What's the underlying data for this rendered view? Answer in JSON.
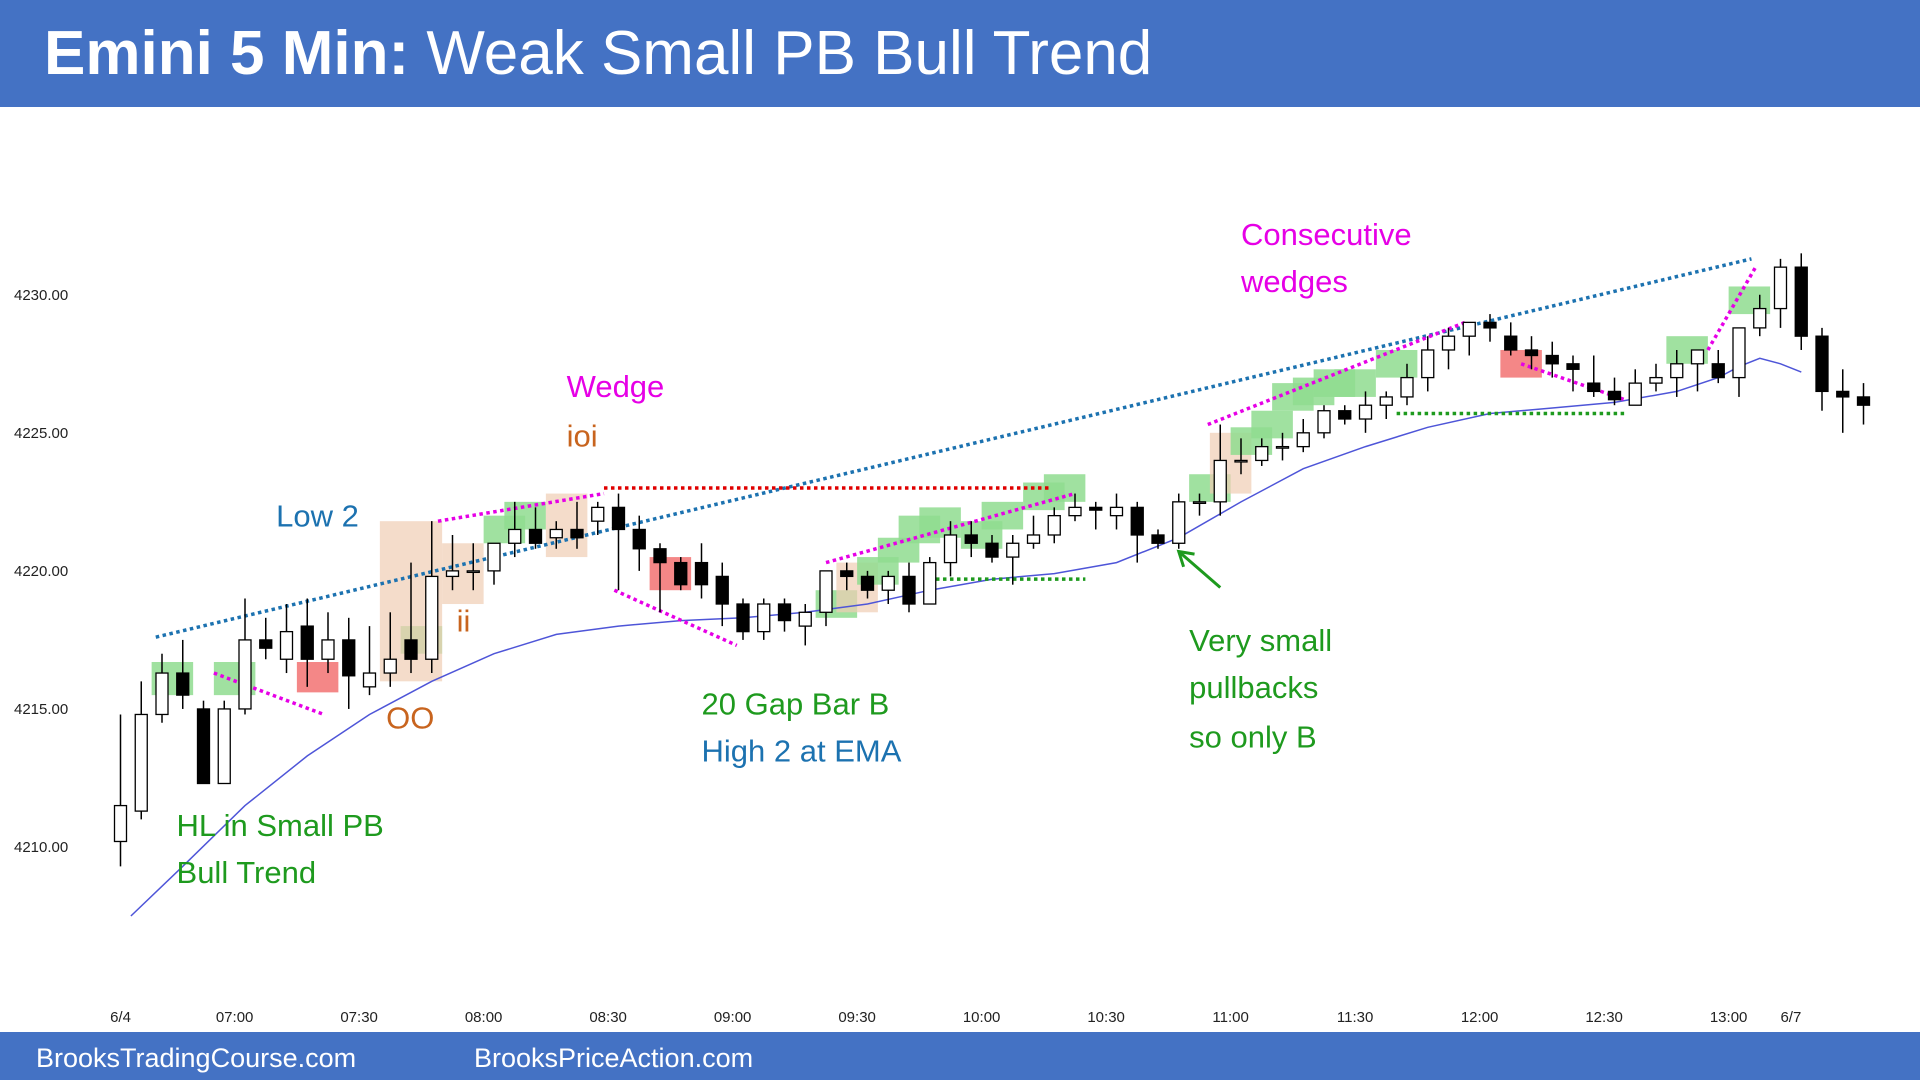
{
  "header": {
    "title_bold": "Emini 5 Min:",
    "title_rest": " Weak Small PB Bull Trend"
  },
  "footer": {
    "left": "BrooksTradingCourse.com",
    "right": "BrooksPriceAction.com"
  },
  "colors": {
    "header_bg": "#4472c4",
    "bull_highlight": "#8fdc8f",
    "bear_highlight": "#f27272",
    "inside_bar_highlight": "#f0cdb4",
    "ema": "#4e55d8",
    "trend_line": "#1c72b0",
    "magenta": "#e600e6",
    "green_text": "#1e9a1e",
    "orange_text": "#c8641e"
  },
  "chart_data": {
    "type": "candlestick",
    "y_ticks": [
      "4210.00",
      "4215.00",
      "4220.00",
      "4225.00",
      "4230.00"
    ],
    "y_tick_values": [
      4210,
      4215,
      4220,
      4225,
      4230
    ],
    "ylim": [
      4203.3,
      4236.8
    ],
    "x_tick_labels": [
      "6/4",
      "07:00",
      "07:30",
      "08:00",
      "08:30",
      "09:00",
      "09:30",
      "10:00",
      "10:30",
      "11:00",
      "11:30",
      "12:00",
      "12:30",
      "13:00",
      "6/7"
    ],
    "x_tick_bars": [
      0,
      5.5,
      11.5,
      17.5,
      23.5,
      29.5,
      35.5,
      41.5,
      47.5,
      53.5,
      59.5,
      65.5,
      71.5,
      77.5,
      80.5
    ],
    "candles": [
      {
        "o": 4210.2,
        "h": 4214.8,
        "l": 4209.3,
        "c": 4211.5
      },
      {
        "o": 4211.3,
        "h": 4216.0,
        "l": 4211.0,
        "c": 4214.8
      },
      {
        "o": 4214.8,
        "h": 4217.0,
        "l": 4214.5,
        "c": 4216.3
      },
      {
        "o": 4216.3,
        "h": 4217.5,
        "l": 4215.0,
        "c": 4215.5
      },
      {
        "o": 4215.0,
        "h": 4215.3,
        "l": 4212.3,
        "c": 4212.3
      },
      {
        "o": 4212.3,
        "h": 4215.3,
        "l": 4212.3,
        "c": 4215.0
      },
      {
        "o": 4215.0,
        "h": 4219.0,
        "l": 4214.8,
        "c": 4217.5
      },
      {
        "o": 4217.5,
        "h": 4218.3,
        "l": 4216.8,
        "c": 4217.2
      },
      {
        "o": 4216.8,
        "h": 4218.8,
        "l": 4216.3,
        "c": 4217.8
      },
      {
        "o": 4218.0,
        "h": 4219.0,
        "l": 4215.8,
        "c": 4216.8
      },
      {
        "o": 4216.8,
        "h": 4218.5,
        "l": 4216.3,
        "c": 4217.5
      },
      {
        "o": 4217.5,
        "h": 4218.3,
        "l": 4215.0,
        "c": 4216.2
      },
      {
        "o": 4215.8,
        "h": 4218.0,
        "l": 4215.5,
        "c": 4216.3
      },
      {
        "o": 4216.3,
        "h": 4218.5,
        "l": 4215.8,
        "c": 4216.8
      },
      {
        "o": 4217.5,
        "h": 4220.3,
        "l": 4216.3,
        "c": 4216.8
      },
      {
        "o": 4216.8,
        "h": 4221.8,
        "l": 4216.3,
        "c": 4219.8
      },
      {
        "o": 4219.8,
        "h": 4221.3,
        "l": 4219.3,
        "c": 4220.0
      },
      {
        "o": 4220.0,
        "h": 4221.0,
        "l": 4219.3,
        "c": 4220.0
      },
      {
        "o": 4220.0,
        "h": 4221.0,
        "l": 4219.5,
        "c": 4221.0
      },
      {
        "o": 4221.0,
        "h": 4222.5,
        "l": 4220.5,
        "c": 4221.5
      },
      {
        "o": 4221.5,
        "h": 4222.3,
        "l": 4220.8,
        "c": 4221.0
      },
      {
        "o": 4221.2,
        "h": 4221.8,
        "l": 4220.8,
        "c": 4221.5
      },
      {
        "o": 4221.5,
        "h": 4222.5,
        "l": 4220.8,
        "c": 4221.2
      },
      {
        "o": 4221.8,
        "h": 4222.5,
        "l": 4221.3,
        "c": 4222.3
      },
      {
        "o": 4222.3,
        "h": 4222.8,
        "l": 4219.3,
        "c": 4221.5
      },
      {
        "o": 4221.5,
        "h": 4222.0,
        "l": 4220.0,
        "c": 4220.8
      },
      {
        "o": 4220.8,
        "h": 4221.0,
        "l": 4218.5,
        "c": 4220.3
      },
      {
        "o": 4220.3,
        "h": 4220.5,
        "l": 4219.3,
        "c": 4219.5
      },
      {
        "o": 4220.3,
        "h": 4221.0,
        "l": 4219.0,
        "c": 4219.5
      },
      {
        "o": 4219.8,
        "h": 4220.3,
        "l": 4218.0,
        "c": 4218.8
      },
      {
        "o": 4218.8,
        "h": 4219.0,
        "l": 4217.5,
        "c": 4217.8
      },
      {
        "o": 4217.8,
        "h": 4219.0,
        "l": 4217.5,
        "c": 4218.8
      },
      {
        "o": 4218.8,
        "h": 4219.0,
        "l": 4217.8,
        "c": 4218.2
      },
      {
        "o": 4218.0,
        "h": 4218.8,
        "l": 4217.3,
        "c": 4218.5
      },
      {
        "o": 4218.5,
        "h": 4220.0,
        "l": 4218.0,
        "c": 4220.0
      },
      {
        "o": 4220.0,
        "h": 4220.3,
        "l": 4219.3,
        "c": 4219.8
      },
      {
        "o": 4219.8,
        "h": 4220.0,
        "l": 4219.0,
        "c": 4219.3
      },
      {
        "o": 4219.3,
        "h": 4220.0,
        "l": 4218.8,
        "c": 4219.8
      },
      {
        "o": 4219.8,
        "h": 4220.3,
        "l": 4218.5,
        "c": 4218.8
      },
      {
        "o": 4218.8,
        "h": 4220.5,
        "l": 4218.8,
        "c": 4220.3
      },
      {
        "o": 4220.3,
        "h": 4221.8,
        "l": 4219.8,
        "c": 4221.3
      },
      {
        "o": 4221.3,
        "h": 4221.8,
        "l": 4220.5,
        "c": 4221.0
      },
      {
        "o": 4221.0,
        "h": 4221.3,
        "l": 4220.3,
        "c": 4220.5
      },
      {
        "o": 4220.5,
        "h": 4221.3,
        "l": 4219.5,
        "c": 4221.0
      },
      {
        "o": 4221.0,
        "h": 4222.0,
        "l": 4220.8,
        "c": 4221.3
      },
      {
        "o": 4221.3,
        "h": 4222.3,
        "l": 4221.0,
        "c": 4222.0
      },
      {
        "o": 4222.0,
        "h": 4222.8,
        "l": 4221.8,
        "c": 4222.3
      },
      {
        "o": 4222.3,
        "h": 4222.5,
        "l": 4221.5,
        "c": 4222.2
      },
      {
        "o": 4222.0,
        "h": 4222.8,
        "l": 4221.5,
        "c": 4222.3
      },
      {
        "o": 4222.3,
        "h": 4222.5,
        "l": 4220.3,
        "c": 4221.3
      },
      {
        "o": 4221.3,
        "h": 4221.5,
        "l": 4220.8,
        "c": 4221.0
      },
      {
        "o": 4221.0,
        "h": 4222.8,
        "l": 4220.8,
        "c": 4222.5
      },
      {
        "o": 4222.5,
        "h": 4222.8,
        "l": 4222.0,
        "c": 4222.5
      },
      {
        "o": 4222.5,
        "h": 4225.3,
        "l": 4222.0,
        "c": 4224.0
      },
      {
        "o": 4224.0,
        "h": 4224.8,
        "l": 4223.5,
        "c": 4224.0
      },
      {
        "o": 4224.0,
        "h": 4224.8,
        "l": 4223.8,
        "c": 4224.5
      },
      {
        "o": 4224.5,
        "h": 4225.0,
        "l": 4224.0,
        "c": 4224.5
      },
      {
        "o": 4224.5,
        "h": 4225.5,
        "l": 4224.3,
        "c": 4225.0
      },
      {
        "o": 4225.0,
        "h": 4226.0,
        "l": 4224.8,
        "c": 4225.8
      },
      {
        "o": 4225.8,
        "h": 4226.0,
        "l": 4225.3,
        "c": 4225.5
      },
      {
        "o": 4225.5,
        "h": 4226.5,
        "l": 4225.0,
        "c": 4226.0
      },
      {
        "o": 4226.0,
        "h": 4226.5,
        "l": 4225.5,
        "c": 4226.3
      },
      {
        "o": 4226.3,
        "h": 4227.5,
        "l": 4226.0,
        "c": 4227.0
      },
      {
        "o": 4227.0,
        "h": 4228.5,
        "l": 4226.5,
        "c": 4228.0
      },
      {
        "o": 4228.0,
        "h": 4228.8,
        "l": 4227.3,
        "c": 4228.5
      },
      {
        "o": 4228.5,
        "h": 4229.0,
        "l": 4227.8,
        "c": 4229.0
      },
      {
        "o": 4229.0,
        "h": 4229.3,
        "l": 4228.3,
        "c": 4228.8
      },
      {
        "o": 4228.5,
        "h": 4229.0,
        "l": 4227.8,
        "c": 4228.0
      },
      {
        "o": 4228.0,
        "h": 4228.5,
        "l": 4227.3,
        "c": 4227.8
      },
      {
        "o": 4227.8,
        "h": 4228.3,
        "l": 4227.0,
        "c": 4227.5
      },
      {
        "o": 4227.5,
        "h": 4227.8,
        "l": 4226.5,
        "c": 4227.3
      },
      {
        "o": 4226.8,
        "h": 4227.8,
        "l": 4226.3,
        "c": 4226.5
      },
      {
        "o": 4226.5,
        "h": 4227.0,
        "l": 4226.0,
        "c": 4226.2
      },
      {
        "o": 4226.0,
        "h": 4227.3,
        "l": 4226.0,
        "c": 4226.8
      },
      {
        "o": 4226.8,
        "h": 4227.5,
        "l": 4226.5,
        "c": 4227.0
      },
      {
        "o": 4227.0,
        "h": 4228.0,
        "l": 4226.3,
        "c": 4227.5
      },
      {
        "o": 4227.5,
        "h": 4228.0,
        "l": 4226.5,
        "c": 4228.0
      },
      {
        "o": 4227.5,
        "h": 4228.0,
        "l": 4226.8,
        "c": 4227.0
      },
      {
        "o": 4227.0,
        "h": 4228.5,
        "l": 4226.3,
        "c": 4228.8
      },
      {
        "o": 4228.8,
        "h": 4230.0,
        "l": 4228.5,
        "c": 4229.5
      },
      {
        "o": 4229.5,
        "h": 4231.3,
        "l": 4228.8,
        "c": 4231.0
      },
      {
        "o": 4231.0,
        "h": 4231.5,
        "l": 4228.0,
        "c": 4228.5
      },
      {
        "o": 4228.5,
        "h": 4228.8,
        "l": 4225.8,
        "c": 4226.5
      },
      {
        "o": 4226.5,
        "h": 4227.3,
        "l": 4225.0,
        "c": 4226.3
      },
      {
        "o": 4226.3,
        "h": 4226.8,
        "l": 4225.3,
        "c": 4226.0
      }
    ],
    "ema": [
      [
        0.5,
        4207.5
      ],
      [
        3,
        4209.3
      ],
      [
        6,
        4211.5
      ],
      [
        9,
        4213.3
      ],
      [
        12,
        4214.8
      ],
      [
        15,
        4216.0
      ],
      [
        18,
        4217.0
      ],
      [
        21,
        4217.7
      ],
      [
        24,
        4218.0
      ],
      [
        27,
        4218.2
      ],
      [
        30,
        4218.3
      ],
      [
        33,
        4218.5
      ],
      [
        36,
        4218.8
      ],
      [
        39,
        4219.3
      ],
      [
        42,
        4219.7
      ],
      [
        45,
        4219.9
      ],
      [
        48,
        4220.3
      ],
      [
        51,
        4221.2
      ],
      [
        54,
        4222.5
      ],
      [
        57,
        4223.7
      ],
      [
        60,
        4224.5
      ],
      [
        63,
        4225.2
      ],
      [
        66,
        4225.7
      ],
      [
        69,
        4225.9
      ],
      [
        72,
        4226.1
      ],
      [
        75,
        4226.5
      ],
      [
        77,
        4227.0
      ],
      [
        78,
        4227.4
      ],
      [
        79,
        4227.7
      ],
      [
        80,
        4227.5
      ],
      [
        81,
        4227.2
      ]
    ],
    "highlights": [
      {
        "kind": "bull",
        "x0": 1.5,
        "x1": 3.5,
        "y0": 4215.5,
        "y1": 4216.7
      },
      {
        "kind": "bull",
        "x0": 4.5,
        "x1": 6.5,
        "y0": 4215.5,
        "y1": 4216.7
      },
      {
        "kind": "bear",
        "x0": 8.5,
        "x1": 10.5,
        "y0": 4215.6,
        "y1": 4216.7
      },
      {
        "kind": "bull",
        "x0": 13.5,
        "x1": 15.5,
        "y0": 4217.0,
        "y1": 4218.0
      },
      {
        "kind": "inside",
        "x0": 12.5,
        "x1": 15.5,
        "y0": 4216.0,
        "y1": 4221.8
      },
      {
        "kind": "inside",
        "x0": 15.5,
        "x1": 17.5,
        "y0": 4218.8,
        "y1": 4221.0
      },
      {
        "kind": "bull",
        "x0": 17.5,
        "x1": 19.5,
        "y0": 4221.0,
        "y1": 4222.0
      },
      {
        "kind": "bull",
        "x0": 18.5,
        "x1": 20.5,
        "y0": 4221.5,
        "y1": 4222.5
      },
      {
        "kind": "inside",
        "x0": 20.5,
        "x1": 22.5,
        "y0": 4220.5,
        "y1": 4222.8
      },
      {
        "kind": "bear",
        "x0": 25.5,
        "x1": 27.5,
        "y0": 4219.3,
        "y1": 4220.5
      },
      {
        "kind": "bull",
        "x0": 33.5,
        "x1": 35.5,
        "y0": 4218.3,
        "y1": 4219.3
      },
      {
        "kind": "inside",
        "x0": 34.5,
        "x1": 36.5,
        "y0": 4218.5,
        "y1": 4220.3
      },
      {
        "kind": "bull",
        "x0": 35.5,
        "x1": 37.5,
        "y0": 4219.5,
        "y1": 4220.5
      },
      {
        "kind": "bull",
        "x0": 36.5,
        "x1": 38.5,
        "y0": 4220.3,
        "y1": 4221.2
      },
      {
        "kind": "bull",
        "x0": 37.5,
        "x1": 39.5,
        "y0": 4221.0,
        "y1": 4222.0
      },
      {
        "kind": "bull",
        "x0": 38.5,
        "x1": 40.5,
        "y0": 4221.2,
        "y1": 4222.3
      },
      {
        "kind": "bull",
        "x0": 40.5,
        "x1": 42.5,
        "y0": 4220.8,
        "y1": 4221.8
      },
      {
        "kind": "bull",
        "x0": 41.5,
        "x1": 43.5,
        "y0": 4221.5,
        "y1": 4222.5
      },
      {
        "kind": "bull",
        "x0": 43.5,
        "x1": 45.5,
        "y0": 4222.2,
        "y1": 4223.2
      },
      {
        "kind": "bull",
        "x0": 44.5,
        "x1": 46.5,
        "y0": 4222.5,
        "y1": 4223.5
      },
      {
        "kind": "bull",
        "x0": 51.5,
        "x1": 53.5,
        "y0": 4222.5,
        "y1": 4223.5
      },
      {
        "kind": "inside",
        "x0": 52.5,
        "x1": 54.5,
        "y0": 4222.8,
        "y1": 4225.0
      },
      {
        "kind": "bull",
        "x0": 53.5,
        "x1": 55.5,
        "y0": 4224.2,
        "y1": 4225.2
      },
      {
        "kind": "bull",
        "x0": 54.5,
        "x1": 56.5,
        "y0": 4224.8,
        "y1": 4225.8
      },
      {
        "kind": "bull",
        "x0": 55.5,
        "x1": 57.5,
        "y0": 4225.8,
        "y1": 4226.8
      },
      {
        "kind": "bull",
        "x0": 56.5,
        "x1": 58.5,
        "y0": 4226.0,
        "y1": 4227.0
      },
      {
        "kind": "bull",
        "x0": 57.5,
        "x1": 59.5,
        "y0": 4226.3,
        "y1": 4227.3
      },
      {
        "kind": "bull",
        "x0": 58.5,
        "x1": 60.5,
        "y0": 4226.3,
        "y1": 4227.3
      },
      {
        "kind": "bull",
        "x0": 60.5,
        "x1": 62.5,
        "y0": 4227.0,
        "y1": 4228.0
      },
      {
        "kind": "bear",
        "x0": 66.5,
        "x1": 68.5,
        "y0": 4227.0,
        "y1": 4228.0
      },
      {
        "kind": "bull",
        "x0": 74.5,
        "x1": 76.5,
        "y0": 4227.5,
        "y1": 4228.5
      },
      {
        "kind": "bull",
        "x0": 77.5,
        "x1": 79.5,
        "y0": 4229.3,
        "y1": 4230.3
      }
    ],
    "lines": [
      {
        "kind": "trend",
        "style": "dotted",
        "x0": 1.7,
        "y0": 4217.6,
        "x1": 78.6,
        "y1": 4231.3
      },
      {
        "kind": "magenta",
        "style": "dotted",
        "x0": 4.5,
        "y0": 4216.3,
        "x1": 9.8,
        "y1": 4214.8
      },
      {
        "kind": "magenta",
        "style": "dotted",
        "x0": 15.3,
        "y0": 4221.8,
        "x1": 23.3,
        "y1": 4222.8
      },
      {
        "kind": "magenta",
        "style": "dotted",
        "x0": 23.8,
        "y0": 4219.3,
        "x1": 29.7,
        "y1": 4217.3
      },
      {
        "kind": "magenta",
        "style": "dotted",
        "x0": 34.0,
        "y0": 4220.3,
        "x1": 46.0,
        "y1": 4222.8
      },
      {
        "kind": "magenta",
        "style": "dotted",
        "x0": 52.4,
        "y0": 4225.3,
        "x1": 64.8,
        "y1": 4229.0
      },
      {
        "kind": "magenta",
        "style": "dotted",
        "x0": 67.5,
        "y0": 4227.5,
        "x1": 72.5,
        "y1": 4226.2
      },
      {
        "kind": "magenta",
        "style": "dotted",
        "x0": 76.5,
        "y0": 4228.0,
        "x1": 78.8,
        "y1": 4231.0
      },
      {
        "kind": "red",
        "style": "dotted",
        "x0": 23.3,
        "y0": 4223.0,
        "x1": 44.8,
        "y1": 4223.0
      },
      {
        "kind": "green",
        "style": "dotted",
        "x0": 39.3,
        "y0": 4219.7,
        "x1": 46.5,
        "y1": 4219.7
      },
      {
        "kind": "green",
        "style": "dotted",
        "x0": 61.5,
        "y0": 4225.7,
        "x1": 72.5,
        "y1": 4225.7
      }
    ],
    "annotations": [
      {
        "text": "Wedge",
        "color": "magenta",
        "x": 21.5,
        "y": 4226.3
      },
      {
        "text": "ioi",
        "color": "orange",
        "x": 21.5,
        "y": 4224.5
      },
      {
        "text": "Low 2",
        "color": "trend",
        "x": 7.5,
        "y": 4221.6
      },
      {
        "text": "ii",
        "color": "orange",
        "x": 16.2,
        "y": 4217.8
      },
      {
        "text": "OO",
        "color": "orange",
        "x": 12.8,
        "y": 4214.3
      },
      {
        "text": "HL in Small PB",
        "color": "green",
        "x": 2.7,
        "y": 4210.4
      },
      {
        "text": "Bull Trend",
        "color": "green",
        "x": 2.7,
        "y": 4208.7
      },
      {
        "text": "20 Gap Bar B",
        "color": "green",
        "x": 28.0,
        "y": 4214.8
      },
      {
        "text": "High 2 at EMA",
        "color": "trend",
        "x": 28.0,
        "y": 4213.1
      },
      {
        "text": "Very small",
        "color": "green",
        "x": 51.5,
        "y": 4217.1
      },
      {
        "text": "pullbacks",
        "color": "green",
        "x": 51.5,
        "y": 4215.4
      },
      {
        "text": "so only B",
        "color": "green",
        "x": 51.5,
        "y": 4213.6
      },
      {
        "text": "Consecutive",
        "color": "magenta",
        "x": 54.0,
        "y": 4231.8
      },
      {
        "text": "wedges",
        "color": "magenta",
        "x": 54.0,
        "y": 4230.1
      }
    ],
    "arrow": {
      "from_x": 53.0,
      "from_y": 4219.4,
      "to_x": 51.0,
      "to_y": 4220.7,
      "color": "green"
    }
  }
}
